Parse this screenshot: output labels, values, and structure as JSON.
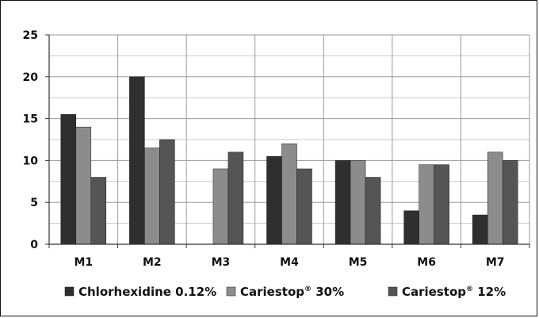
{
  "chart_data": {
    "type": "bar",
    "categories": [
      "M1",
      "M2",
      "M3",
      "M4",
      "M5",
      "M6",
      "M7"
    ],
    "series": [
      {
        "name": "Chlorhexidine 0.12%",
        "values": [
          15.5,
          20,
          0,
          10.5,
          10,
          4,
          3.5
        ]
      },
      {
        "name": "Cariestop® 30%",
        "values": [
          14,
          11.5,
          9,
          12,
          10,
          9.5,
          11
        ]
      },
      {
        "name": "Cariestop® 12%",
        "values": [
          8,
          12.5,
          11,
          9,
          8,
          9.5,
          10
        ]
      }
    ],
    "colors": [
      "#2f2f2f",
      "#8c8c8c",
      "#555555"
    ],
    "ylim": [
      0,
      25
    ],
    "yticks": [
      "0",
      "5",
      "10",
      "15",
      "20",
      "25"
    ],
    "grid": true,
    "legend_position": "bottom"
  }
}
